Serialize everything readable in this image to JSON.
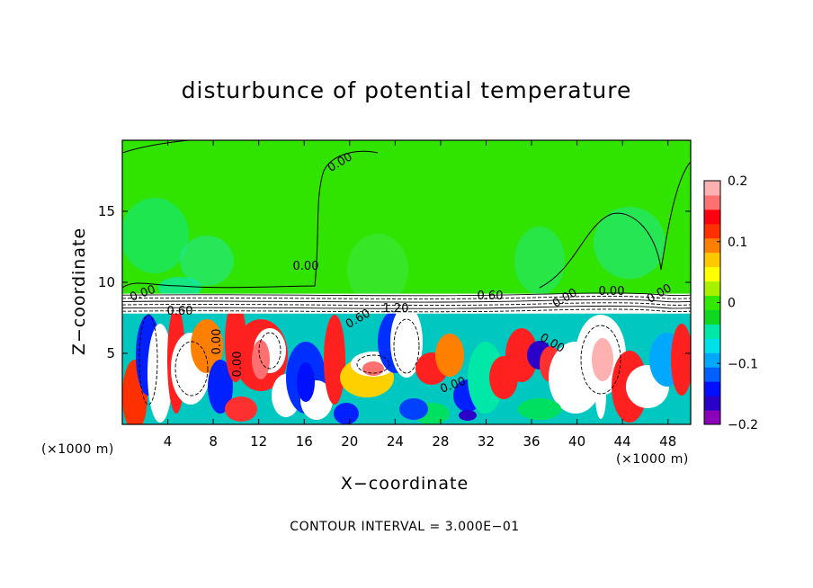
{
  "chart_data": {
    "type": "heatmap",
    "title": "disturbunce of potential temperature",
    "xlabel": "X−coordinate",
    "ylabel": "Z−coordinate",
    "x_unit_left": "(×1000 m)",
    "x_unit_right": "(×1000 m)",
    "note": "CONTOUR INTERVAL = 3.000E−01",
    "xlim": [
      0,
      50
    ],
    "ylim": [
      0,
      20
    ],
    "x_ticks": [
      4,
      8,
      12,
      16,
      20,
      24,
      28,
      32,
      36,
      40,
      44,
      48
    ],
    "y_ticks": [
      5,
      10,
      15
    ],
    "colorbar": {
      "range": [
        -0.2,
        0.2
      ],
      "tick_labels": [
        "0.2",
        "0.1",
        "0",
        "−0.1",
        "−0.2"
      ],
      "tick_values": [
        0.2,
        0.1,
        0,
        -0.1,
        -0.2
      ],
      "colors": [
        "#8a00b8",
        "#2a00c8",
        "#0010ff",
        "#0060ff",
        "#00a8ff",
        "#00e0e8",
        "#00e8a8",
        "#10d820",
        "#30e800",
        "#a8f000",
        "#ffff00",
        "#ffc800",
        "#ff8000",
        "#ff3000",
        "#ff0010",
        "#ff7070",
        "#ffb0b0"
      ]
    },
    "contour_labels": [
      "0.00",
      "0.60",
      "1.20",
      "0.60",
      "0.00",
      "0.00",
      "0.60",
      "0.00",
      "0.00",
      "0.00",
      "0.00",
      "0.00",
      "0.00",
      "0.00"
    ],
    "contour_interval": 0.3
  }
}
